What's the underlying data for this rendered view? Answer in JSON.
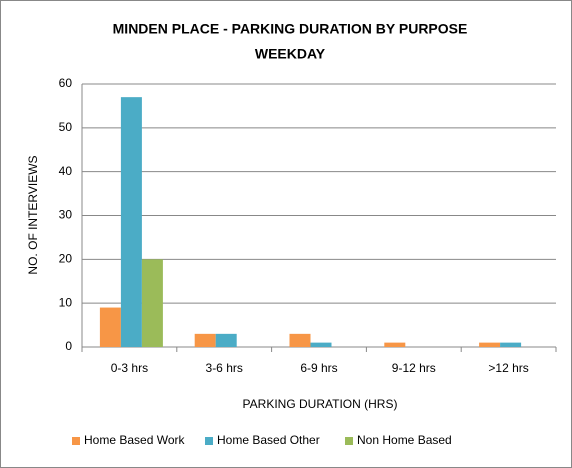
{
  "chart_data": {
    "type": "bar",
    "title": [
      "MINDEN PLACE - PARKING DURATION BY PURPOSE",
      "WEEKDAY"
    ],
    "x_label": "PARKING DURATION (HRS)",
    "y_label": "NO. OF INTERVIEWS",
    "categories": [
      "0-3 hrs",
      "3-6 hrs",
      "6-9 hrs",
      "9-12 hrs",
      ">12 hrs"
    ],
    "series": [
      {
        "name": "Home Based Work",
        "color": "#f79646",
        "values": [
          9,
          3,
          3,
          1,
          1
        ]
      },
      {
        "name": "Home Based Other",
        "color": "#4bacc6",
        "values": [
          57,
          3,
          1,
          0,
          1
        ]
      },
      {
        "name": "Non Home Based",
        "color": "#9bbb59",
        "values": [
          20,
          0,
          0,
          0,
          0
        ]
      }
    ],
    "ylim": [
      0,
      60
    ],
    "yticks": [
      0,
      10,
      20,
      30,
      40,
      50,
      60
    ],
    "grid": true,
    "legend": "bottom"
  }
}
